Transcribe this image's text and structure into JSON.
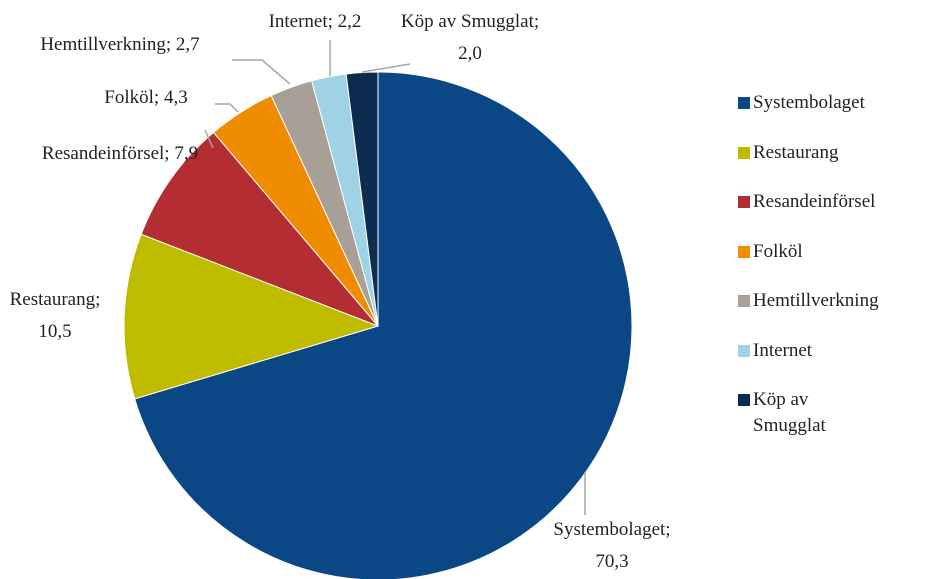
{
  "chart_data": {
    "type": "pie",
    "categories": [
      "Systembolaget",
      "Restaurang",
      "Resandeinförsel",
      "Folköl",
      "Hemtillverkning",
      "Internet",
      "Köp av Smugglat"
    ],
    "values": [
      70.3,
      10.5,
      7.9,
      4.3,
      2.7,
      2.2,
      2.0
    ],
    "value_labels": [
      "Systembolaget; 70,3",
      "Restaurang; 10,5",
      "Resandeinförsel; 7,9",
      "Folköl; 4,3",
      "Hemtillverkning; 2,7",
      "Internet; 2,2",
      "Köp av Smugglat; 2,0"
    ],
    "colors": [
      "#0b4685",
      "#bfbc00",
      "#b32d33",
      "#f08c00",
      "#a89f97",
      "#9fd2e4",
      "#0e2c4f"
    ],
    "legend": "right"
  }
}
